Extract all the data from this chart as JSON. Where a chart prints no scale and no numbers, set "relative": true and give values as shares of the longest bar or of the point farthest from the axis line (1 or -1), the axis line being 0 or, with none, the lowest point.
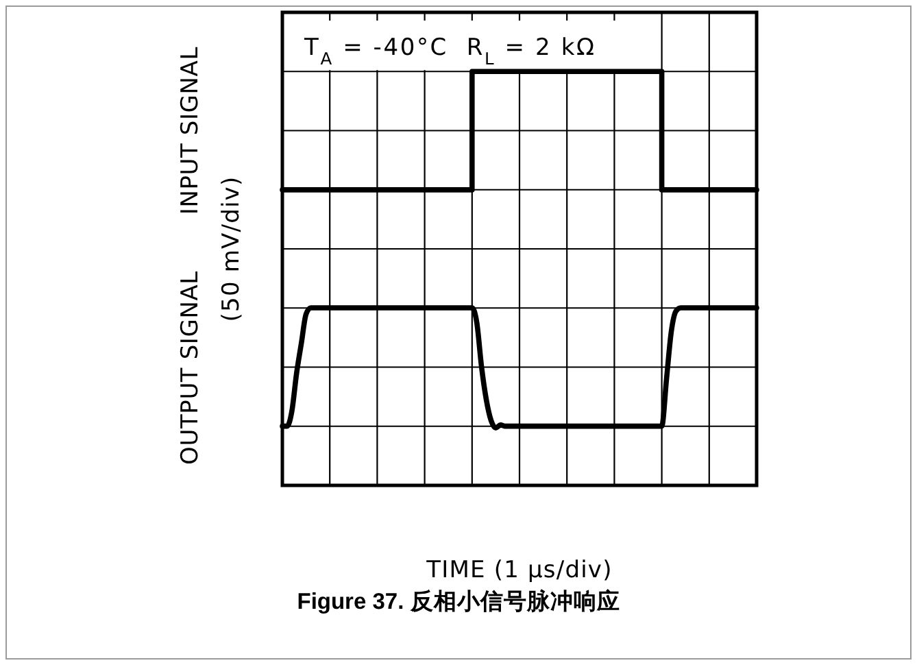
{
  "chart_data": {
    "type": "line",
    "title": "Figure 37. 反相小信号脉冲响应",
    "xlabel": "TIME (1 μs/div)",
    "ylabel": "(50 mV/div)",
    "annotations": [
      "T$_{A}$ = -40°C  R$_{L}$ = 2 kΩ",
      "INPUT SIGNAL",
      "OUTPUT SIGNAL"
    ],
    "relative": true,
    "grid": true,
    "categories": [
      null,
      null,
      null,
      null,
      null,
      null,
      null,
      null,
      null,
      null,
      null,
      null,
      null,
      null,
      null,
      null,
      null,
      null,
      null,
      null,
      null,
      null,
      null,
      null,
      null,
      null,
      null,
      null,
      null,
      null,
      null,
      null,
      null,
      null,
      null,
      null,
      null,
      null,
      null,
      null,
      null,
      null,
      null,
      null,
      null,
      null,
      null,
      null,
      null,
      null,
      null,
      null,
      null,
      null,
      null,
      null,
      null,
      null,
      null,
      null,
      null,
      null,
      null,
      null,
      null,
      null,
      null,
      null,
      null,
      null,
      null,
      null,
      null,
      null,
      null,
      null,
      null,
      null,
      null,
      null,
      null,
      null,
      null,
      null,
      null,
      null,
      null,
      null,
      null,
      null,
      null,
      null,
      null,
      null,
      null,
      null,
      null,
      null,
      null,
      null,
      null
    ],
    "series": [
      {
        "type": "step",
        "color": "#000000",
        "values": [
          0.714,
          0.714,
          0.714,
          0.714,
          0.714,
          0.714,
          0.714,
          0.714,
          0.714,
          0.714,
          0.714,
          0.714,
          0.714,
          0.714,
          0.714,
          0.714,
          0.714,
          0.714,
          0.714,
          0.714,
          0.714,
          0.714,
          0.714,
          0.714,
          0.714,
          0.714,
          0.714,
          0.714,
          0.714,
          0.714,
          0.714,
          0.714,
          0.714,
          0.714,
          0.714,
          0.714,
          0.714,
          0.714,
          0.714,
          0.714,
          1,
          1,
          1,
          1,
          1,
          1,
          1,
          1,
          1,
          1,
          1,
          1,
          1,
          1,
          1,
          1,
          1,
          1,
          1,
          1,
          1,
          1,
          1,
          1,
          1,
          1,
          1,
          1,
          1,
          1,
          1,
          1,
          1,
          1,
          1,
          1,
          1,
          1,
          1,
          1,
          0.714,
          0.714,
          0.714,
          0.714,
          0.714,
          0.714,
          0.714,
          0.714,
          0.714,
          0.714,
          0.714,
          0.714,
          0.714,
          0.714,
          0.714,
          0.714,
          0.714,
          0.714,
          0.714,
          0.714,
          0.714
        ]
      },
      {
        "type": "line",
        "color": "#000000",
        "values": [
          0.143,
          0.143,
          0.179,
          0.271,
          0.343,
          0.414,
          0.429,
          0.429,
          0.429,
          0.429,
          0.429,
          0.429,
          0.429,
          0.429,
          0.429,
          0.429,
          0.429,
          0.429,
          0.429,
          0.429,
          0.429,
          0.429,
          0.429,
          0.429,
          0.429,
          0.429,
          0.429,
          0.429,
          0.429,
          0.429,
          0.429,
          0.429,
          0.429,
          0.429,
          0.429,
          0.429,
          0.429,
          0.429,
          0.429,
          0.429,
          0.429,
          0.393,
          0.286,
          0.207,
          0.157,
          0.139,
          0.146,
          0.143,
          0.143,
          0.143,
          0.143,
          0.143,
          0.143,
          0.143,
          0.143,
          0.143,
          0.143,
          0.143,
          0.143,
          0.143,
          0.143,
          0.143,
          0.143,
          0.143,
          0.143,
          0.143,
          0.143,
          0.143,
          0.143,
          0.143,
          0.143,
          0.143,
          0.143,
          0.143,
          0.143,
          0.143,
          0.143,
          0.143,
          0.143,
          0.143,
          0.143,
          0.257,
          0.371,
          0.421,
          0.429,
          0.429,
          0.429,
          0.429,
          0.429,
          0.429,
          0.429,
          0.429,
          0.429,
          0.429,
          0.429,
          0.429,
          0.429,
          0.429,
          0.429,
          0.429,
          0.429
        ]
      }
    ]
  }
}
